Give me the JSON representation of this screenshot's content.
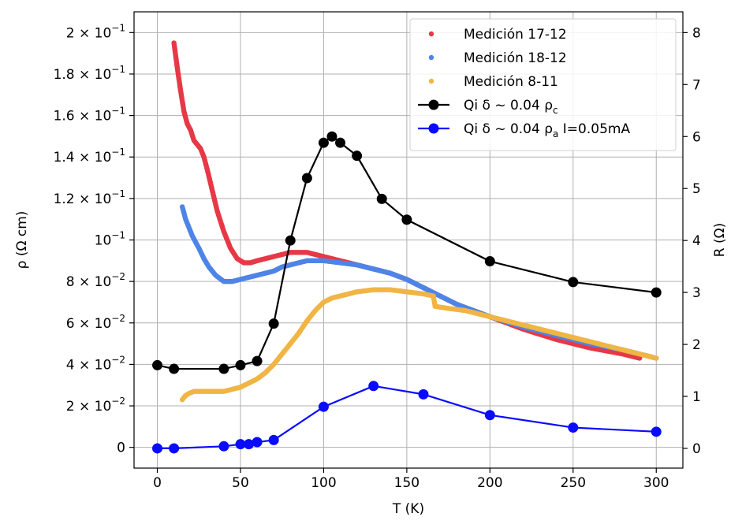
{
  "chart_data": {
    "type": "scatter",
    "xlabel": "T (K)",
    "ylabel_left": "ρ (Ω cm)",
    "ylabel_right": "R (Ω)",
    "xlim": [
      -14,
      316
    ],
    "ylim_left": [
      -0.01,
      0.21
    ],
    "ylim_right": [
      -0.38,
      8.4
    ],
    "grid": true,
    "legend_position": "top-right",
    "x_ticks": [
      0,
      50,
      100,
      150,
      200,
      250,
      300
    ],
    "x_tick_labels": [
      "0",
      "50",
      "100",
      "150",
      "200",
      "250",
      "300"
    ],
    "y_left_ticks": [
      0,
      0.02,
      0.04,
      0.06,
      0.08,
      0.1,
      0.12,
      0.14,
      0.16,
      0.18,
      0.2
    ],
    "y_left_tick_labels": [
      {
        "mant": "",
        "exp": "",
        "plain": "0"
      },
      {
        "mant": "2 × 10",
        "exp": "−2"
      },
      {
        "mant": "4 × 10",
        "exp": "−2"
      },
      {
        "mant": "6 × 10",
        "exp": "−2"
      },
      {
        "mant": "8 × 10",
        "exp": "−2"
      },
      {
        "mant": "10",
        "exp": "−1"
      },
      {
        "mant": "1.2 × 10",
        "exp": "−1"
      },
      {
        "mant": "1.4 × 10",
        "exp": "−1"
      },
      {
        "mant": "1.6 × 10",
        "exp": "−1"
      },
      {
        "mant": "1.8 × 10",
        "exp": "−1"
      },
      {
        "mant": "2 × 10",
        "exp": "−1"
      }
    ],
    "y_right_ticks": [
      0,
      1,
      2,
      3,
      4,
      5,
      6,
      7,
      8
    ],
    "y_right_tick_labels": [
      "0",
      "1",
      "2",
      "3",
      "4",
      "5",
      "6",
      "7",
      "8"
    ],
    "series": [
      {
        "name": "Medición 17-12",
        "kind": "dense-scatter",
        "axis": "left",
        "color": "#e63946",
        "x": [
          10,
          12,
          14,
          16,
          18,
          20,
          22,
          24,
          26,
          28,
          30,
          33,
          36,
          40,
          44,
          48,
          52,
          56,
          60,
          65,
          70,
          75,
          80,
          85,
          90,
          95,
          100,
          110,
          120,
          130,
          140,
          150,
          160,
          170,
          180,
          190,
          200,
          220,
          240,
          260,
          280,
          290
        ],
        "y": [
          0.195,
          0.183,
          0.172,
          0.162,
          0.156,
          0.153,
          0.148,
          0.146,
          0.144,
          0.14,
          0.134,
          0.124,
          0.114,
          0.104,
          0.096,
          0.091,
          0.089,
          0.089,
          0.09,
          0.091,
          0.092,
          0.093,
          0.094,
          0.094,
          0.094,
          0.093,
          0.092,
          0.09,
          0.088,
          0.086,
          0.084,
          0.081,
          0.077,
          0.073,
          0.069,
          0.066,
          0.063,
          0.057,
          0.052,
          0.048,
          0.045,
          0.043
        ]
      },
      {
        "name": "Medición 18-12",
        "kind": "dense-scatter",
        "axis": "left",
        "color": "#4e84e8",
        "x": [
          15,
          17,
          19,
          21,
          23,
          25,
          28,
          31,
          35,
          40,
          45,
          50,
          55,
          60,
          65,
          70,
          75,
          80,
          85,
          90,
          100,
          110,
          120,
          130,
          140,
          150,
          160,
          170,
          180,
          190,
          200,
          220,
          240,
          260,
          280,
          300
        ],
        "y": [
          0.116,
          0.11,
          0.106,
          0.102,
          0.099,
          0.096,
          0.091,
          0.087,
          0.083,
          0.08,
          0.08,
          0.081,
          0.082,
          0.083,
          0.084,
          0.085,
          0.087,
          0.088,
          0.089,
          0.09,
          0.09,
          0.089,
          0.088,
          0.086,
          0.084,
          0.081,
          0.077,
          0.073,
          0.069,
          0.066,
          0.063,
          0.058,
          0.054,
          0.05,
          0.047,
          0.043
        ]
      },
      {
        "name": "Medición 8-11",
        "kind": "dense-scatter",
        "axis": "left",
        "color": "#f0b545",
        "x": [
          15,
          17,
          19,
          22,
          26,
          30,
          35,
          40,
          45,
          50,
          55,
          60,
          65,
          70,
          75,
          80,
          85,
          90,
          95,
          100,
          105,
          110,
          115,
          120,
          130,
          140,
          150,
          160,
          166,
          167,
          175,
          185,
          200,
          220,
          240,
          260,
          280,
          300
        ],
        "y": [
          0.023,
          0.025,
          0.026,
          0.027,
          0.027,
          0.027,
          0.027,
          0.027,
          0.028,
          0.029,
          0.031,
          0.033,
          0.036,
          0.04,
          0.045,
          0.05,
          0.055,
          0.061,
          0.066,
          0.07,
          0.072,
          0.073,
          0.074,
          0.075,
          0.076,
          0.076,
          0.075,
          0.074,
          0.073,
          0.068,
          0.067,
          0.066,
          0.063,
          0.059,
          0.055,
          0.051,
          0.047,
          0.043
        ]
      },
      {
        "name": "Qi δ ~ 0.04 ρ",
        "name_sub": "c",
        "kind": "line-marker",
        "axis": "right",
        "color": "#000000",
        "x": [
          0,
          10,
          40,
          50,
          60,
          70,
          80,
          90,
          100,
          105,
          110,
          120,
          135,
          150,
          200,
          250,
          300
        ],
        "y": [
          1.6,
          1.53,
          1.53,
          1.6,
          1.68,
          2.4,
          4.0,
          5.2,
          5.88,
          6.0,
          5.88,
          5.63,
          4.8,
          4.4,
          3.6,
          3.2,
          3.0
        ]
      },
      {
        "name": "Qi δ ~ 0.04 ρ",
        "name_sub": "a",
        "name_suffix": " I=0.05mA",
        "kind": "line-marker",
        "axis": "right",
        "color": "#0a0aff",
        "x": [
          0,
          10,
          40,
          50,
          55,
          60,
          70,
          100,
          130,
          160,
          200,
          250,
          300
        ],
        "y": [
          0.0,
          0.0,
          0.04,
          0.08,
          0.08,
          0.12,
          0.16,
          0.8,
          1.2,
          1.04,
          0.64,
          0.4,
          0.32
        ]
      }
    ]
  }
}
